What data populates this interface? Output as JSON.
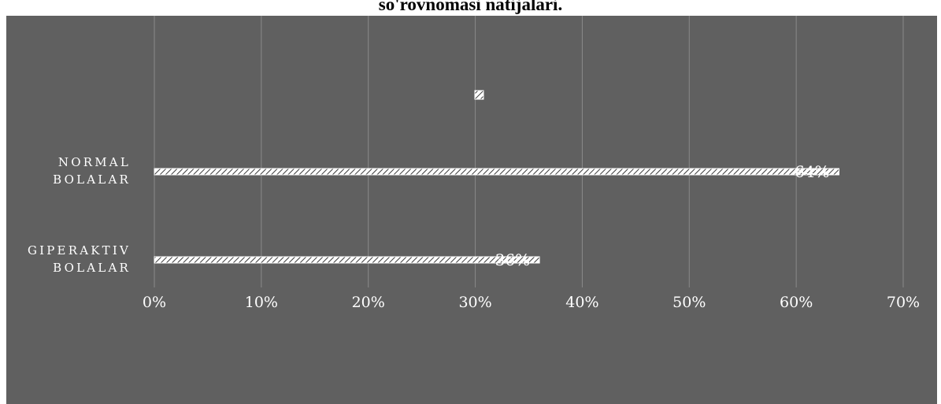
{
  "chart_data": {
    "type": "bar",
    "orientation": "horizontal",
    "title": "so'rovnomasi natijalari.",
    "categories": [
      "GIPERAKTIV BOLALAR",
      "NORMAL BOLALAR"
    ],
    "category_lines": [
      [
        "GIPERAKTIV",
        "BOLALAR"
      ],
      [
        "NORMAL",
        "BOLALAR"
      ]
    ],
    "values": [
      0.36,
      0.64
    ],
    "data_labels": [
      "36%",
      "64%"
    ],
    "x_ticks": [
      "0%",
      "10%",
      "20%",
      "30%",
      "40%",
      "50%",
      "60%",
      "70%"
    ],
    "xlim": [
      0,
      0.7
    ],
    "grid": true,
    "legend": "legend marker only",
    "colors": {
      "background": "#606060",
      "bar_fill": "hatched white",
      "grid": "#8a8a8a",
      "text": "#ffffff"
    }
  }
}
